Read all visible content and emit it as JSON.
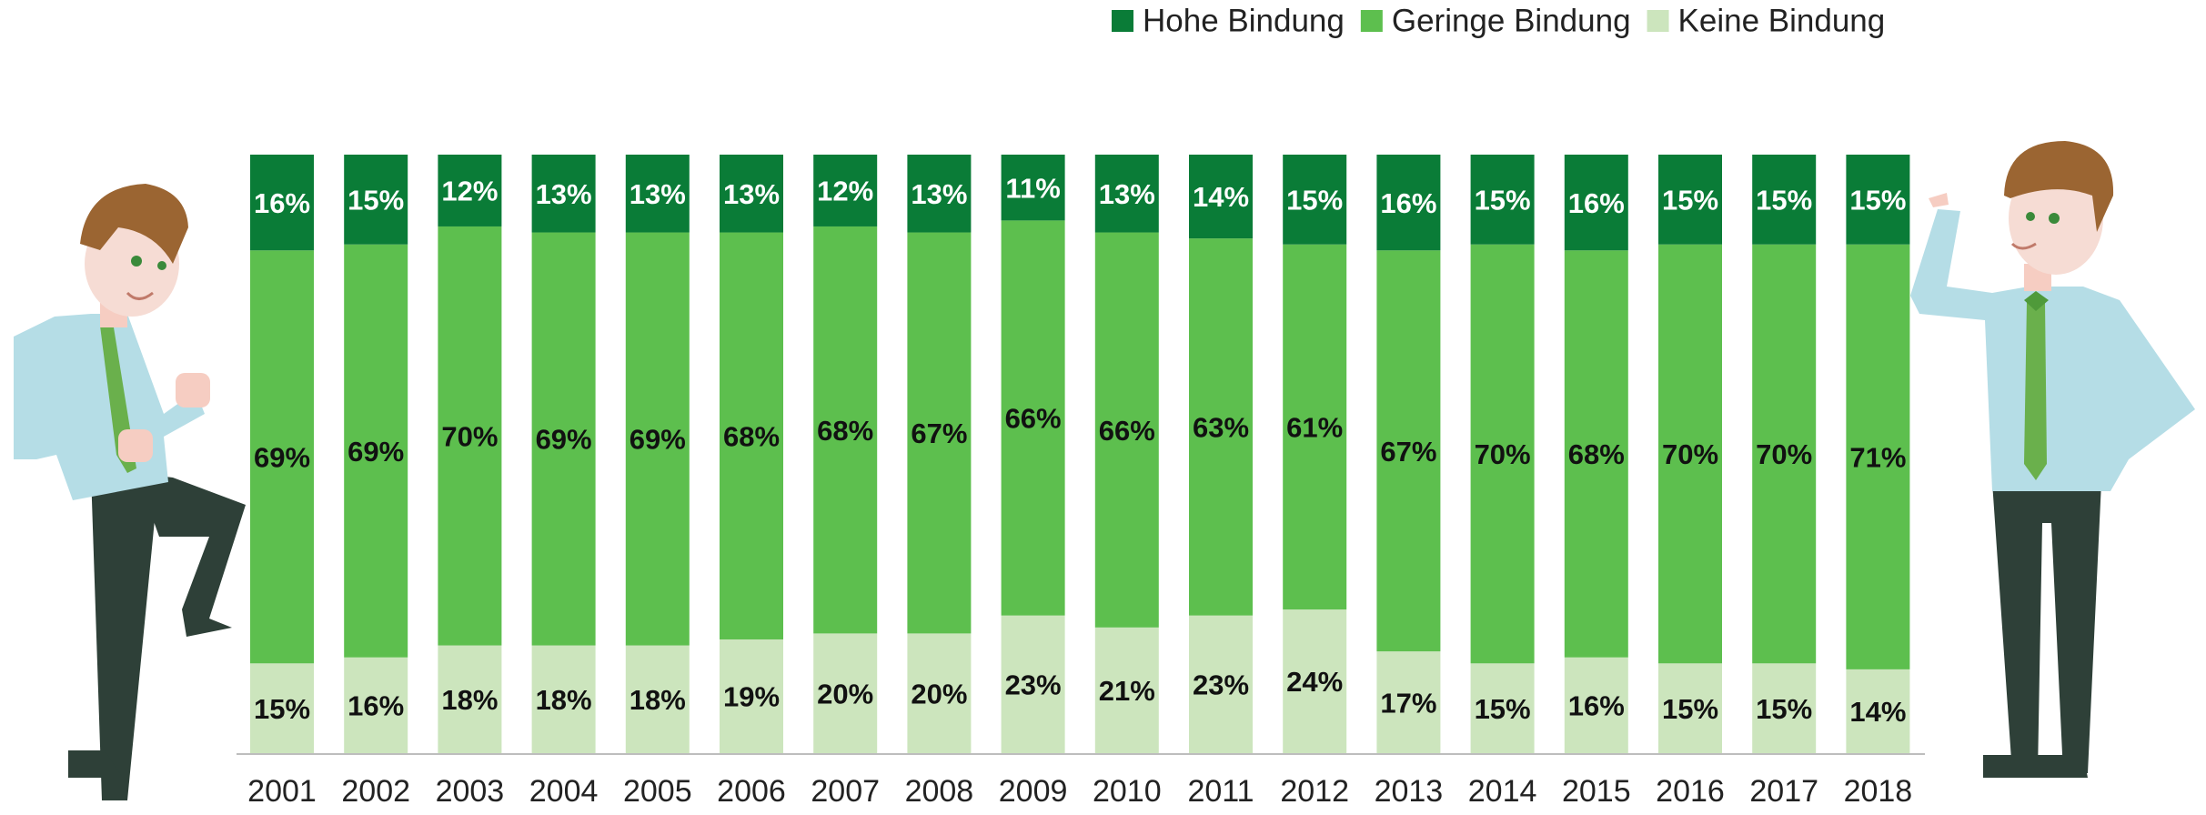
{
  "chart_data": {
    "type": "stacked_bar",
    "categories": [
      "2001",
      "2002",
      "2003",
      "2004",
      "2005",
      "2006",
      "2007",
      "2008",
      "2009",
      "2010",
      "2011",
      "2012",
      "2013",
      "2014",
      "2015",
      "2016",
      "2017",
      "2018"
    ],
    "ylim": [
      0,
      100
    ],
    "series": [
      {
        "name": "Hohe Bindung",
        "color": "#0a7c37",
        "label_color": "#ffffff",
        "values": [
          16,
          15,
          12,
          13,
          13,
          13,
          12,
          13,
          11,
          13,
          14,
          15,
          16,
          15,
          16,
          15,
          15,
          15
        ],
        "value_labels": [
          "16%",
          "15%",
          "12%",
          "13%",
          "13%",
          "13%",
          "12%",
          "13%",
          "11%",
          "13%",
          "14%",
          "15%",
          "16%",
          "15%",
          "16%",
          "15%",
          "15%",
          "15%"
        ]
      },
      {
        "name": "Geringe Bindung",
        "color": "#5dbf4e",
        "label_color": "#111111",
        "values": [
          69,
          69,
          70,
          69,
          69,
          68,
          68,
          67,
          66,
          66,
          63,
          61,
          67,
          70,
          68,
          70,
          70,
          71
        ],
        "value_labels": [
          "69%",
          "69%",
          "70%",
          "69%",
          "69%",
          "68%",
          "68%",
          "67%",
          "66%",
          "66%",
          "63%",
          "61%",
          "67%",
          "70%",
          "68%",
          "70%",
          "70%",
          "71%"
        ]
      },
      {
        "name": "Keine Bindung",
        "color": "#cce5bd",
        "label_color": "#111111",
        "values": [
          15,
          16,
          18,
          18,
          18,
          19,
          20,
          20,
          23,
          21,
          23,
          24,
          17,
          15,
          16,
          15,
          15,
          14
        ],
        "value_labels": [
          "15%",
          "16%",
          "18%",
          "18%",
          "18%",
          "19%",
          "20%",
          "20%",
          "23%",
          "21%",
          "23%",
          "24%",
          "17%",
          "15%",
          "16%",
          "15%",
          "15%",
          "14%"
        ]
      }
    ]
  }
}
